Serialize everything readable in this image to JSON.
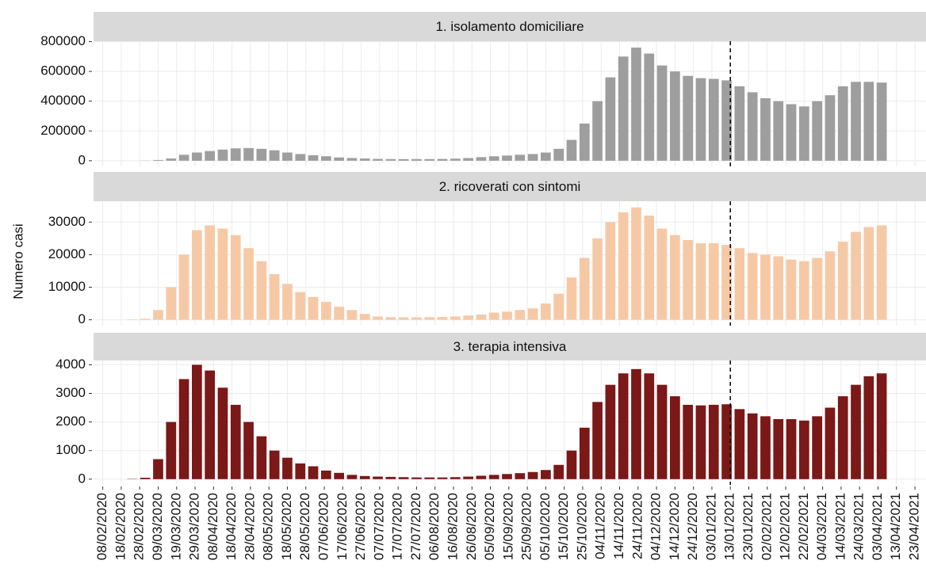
{
  "chart_data": [
    {
      "type": "bar",
      "title": "1. isolamento domiciliare",
      "color": "#9e9e9e",
      "vline": "13/01/2021",
      "xlim": [
        "03/02/2020",
        "29/04/2021"
      ],
      "ylim": [
        -38000,
        803000
      ],
      "yticks": [
        0,
        200000,
        400000,
        600000,
        800000
      ],
      "grid": true,
      "x": [
        "24/02/2020",
        "02/03/2020",
        "09/03/2020",
        "16/03/2020",
        "23/03/2020",
        "30/03/2020",
        "06/04/2020",
        "13/04/2020",
        "20/04/2020",
        "27/04/2020",
        "04/05/2020",
        "11/05/2020",
        "18/05/2020",
        "25/05/2020",
        "01/06/2020",
        "08/06/2020",
        "15/06/2020",
        "22/06/2020",
        "29/06/2020",
        "06/07/2020",
        "13/07/2020",
        "20/07/2020",
        "27/07/2020",
        "03/08/2020",
        "10/08/2020",
        "17/08/2020",
        "24/08/2020",
        "31/08/2020",
        "07/09/2020",
        "14/09/2020",
        "21/09/2020",
        "28/09/2020",
        "05/10/2020",
        "12/10/2020",
        "19/10/2020",
        "26/10/2020",
        "02/11/2020",
        "09/11/2020",
        "16/11/2020",
        "23/11/2020",
        "30/11/2020",
        "07/12/2020",
        "14/12/2020",
        "21/12/2020",
        "28/12/2020",
        "04/01/2021",
        "11/01/2021",
        "18/01/2021",
        "25/01/2021",
        "01/02/2021",
        "08/02/2021",
        "15/02/2021",
        "22/02/2021",
        "01/03/2021",
        "08/03/2021",
        "15/03/2021",
        "22/03/2021",
        "29/03/2021",
        "05/04/2021"
      ],
      "values": [
        100,
        1000,
        5000,
        15000,
        40000,
        55000,
        65000,
        75000,
        83000,
        85000,
        80000,
        70000,
        55000,
        45000,
        37000,
        30000,
        22000,
        18000,
        15000,
        12000,
        11000,
        11000,
        11000,
        11000,
        12000,
        14000,
        18000,
        24000,
        30000,
        35000,
        40000,
        45000,
        55000,
        80000,
        140000,
        250000,
        400000,
        560000,
        700000,
        760000,
        720000,
        640000,
        600000,
        570000,
        555000,
        550000,
        540000,
        500000,
        460000,
        420000,
        400000,
        380000,
        365000,
        400000,
        440000,
        500000,
        530000,
        530000,
        525000
      ]
    },
    {
      "type": "bar",
      "title": "2. ricoverati con sintomi",
      "ylabel": "Numero casi",
      "color": "#f6c9a6",
      "vline": "13/01/2021",
      "xlim": [
        "03/02/2020",
        "29/04/2021"
      ],
      "ylim": [
        -1800,
        36400
      ],
      "yticks": [
        0,
        10000,
        20000,
        30000
      ],
      "grid": true,
      "x": [
        "24/02/2020",
        "02/03/2020",
        "09/03/2020",
        "16/03/2020",
        "23/03/2020",
        "30/03/2020",
        "06/04/2020",
        "13/04/2020",
        "20/04/2020",
        "27/04/2020",
        "04/05/2020",
        "11/05/2020",
        "18/05/2020",
        "25/05/2020",
        "01/06/2020",
        "08/06/2020",
        "15/06/2020",
        "22/06/2020",
        "29/06/2020",
        "06/07/2020",
        "13/07/2020",
        "20/07/2020",
        "27/07/2020",
        "03/08/2020",
        "10/08/2020",
        "17/08/2020",
        "24/08/2020",
        "31/08/2020",
        "07/09/2020",
        "14/09/2020",
        "21/09/2020",
        "28/09/2020",
        "05/10/2020",
        "12/10/2020",
        "19/10/2020",
        "26/10/2020",
        "02/11/2020",
        "09/11/2020",
        "16/11/2020",
        "23/11/2020",
        "30/11/2020",
        "07/12/2020",
        "14/12/2020",
        "21/12/2020",
        "28/12/2020",
        "04/01/2021",
        "11/01/2021",
        "18/01/2021",
        "25/01/2021",
        "01/02/2021",
        "08/02/2021",
        "15/02/2021",
        "22/02/2021",
        "01/03/2021",
        "08/03/2021",
        "15/03/2021",
        "22/03/2021",
        "29/03/2021",
        "05/04/2021"
      ],
      "values": [
        100,
        300,
        3000,
        10000,
        20000,
        27500,
        29000,
        28000,
        26000,
        22000,
        18000,
        14000,
        11000,
        8500,
        7000,
        5500,
        4000,
        3000,
        1800,
        1000,
        800,
        750,
        750,
        800,
        850,
        1000,
        1300,
        1600,
        2200,
        2500,
        3000,
        3500,
        5000,
        8000,
        13000,
        19000,
        25000,
        30000,
        33000,
        34500,
        32000,
        28000,
        26000,
        24500,
        23500,
        23500,
        23000,
        22000,
        20500,
        20000,
        19500,
        18500,
        18000,
        19000,
        21000,
        24000,
        27000,
        28500,
        29000
      ]
    },
    {
      "type": "bar",
      "title": "3. terapia intensiva",
      "color": "#7b1818",
      "vline": "13/01/2021",
      "xlim": [
        "03/02/2020",
        "29/04/2021"
      ],
      "ylim": [
        -200,
        4150
      ],
      "yticks": [
        0,
        1000,
        2000,
        3000,
        4000
      ],
      "grid": true,
      "xticks": [
        "08/02/2020",
        "18/02/2020",
        "28/02/2020",
        "09/03/2020",
        "19/03/2020",
        "29/03/2020",
        "08/04/2020",
        "18/04/2020",
        "28/04/2020",
        "08/05/2020",
        "18/05/2020",
        "28/05/2020",
        "07/06/2020",
        "17/06/2020",
        "27/06/2020",
        "07/07/2020",
        "17/07/2020",
        "27/07/2020",
        "06/08/2020",
        "16/08/2020",
        "26/08/2020",
        "05/09/2020",
        "15/09/2020",
        "25/09/2020",
        "05/10/2020",
        "15/10/2020",
        "25/10/2020",
        "04/11/2020",
        "14/11/2020",
        "24/11/2020",
        "04/12/2020",
        "14/12/2020",
        "24/12/2020",
        "03/01/2021",
        "13/01/2021",
        "23/01/2021",
        "02/02/2021",
        "12/02/2021",
        "22/02/2021",
        "04/03/2021",
        "14/03/2021",
        "24/03/2021",
        "03/04/2021",
        "13/04/2021",
        "23/04/2021"
      ],
      "x": [
        "24/02/2020",
        "02/03/2020",
        "09/03/2020",
        "16/03/2020",
        "23/03/2020",
        "30/03/2020",
        "06/04/2020",
        "13/04/2020",
        "20/04/2020",
        "27/04/2020",
        "04/05/2020",
        "11/05/2020",
        "18/05/2020",
        "25/05/2020",
        "01/06/2020",
        "08/06/2020",
        "15/06/2020",
        "22/06/2020",
        "29/06/2020",
        "06/07/2020",
        "13/07/2020",
        "20/07/2020",
        "27/07/2020",
        "03/08/2020",
        "10/08/2020",
        "17/08/2020",
        "24/08/2020",
        "31/08/2020",
        "07/09/2020",
        "14/09/2020",
        "21/09/2020",
        "28/09/2020",
        "05/10/2020",
        "12/10/2020",
        "19/10/2020",
        "26/10/2020",
        "02/11/2020",
        "09/11/2020",
        "16/11/2020",
        "23/11/2020",
        "30/11/2020",
        "07/12/2020",
        "14/12/2020",
        "21/12/2020",
        "28/12/2020",
        "04/01/2021",
        "11/01/2021",
        "18/01/2021",
        "25/01/2021",
        "01/02/2021",
        "08/02/2021",
        "15/02/2021",
        "22/02/2021",
        "01/03/2021",
        "08/03/2021",
        "15/03/2021",
        "22/03/2021",
        "29/03/2021",
        "05/04/2021"
      ],
      "values": [
        10,
        50,
        700,
        2000,
        3500,
        4000,
        3800,
        3200,
        2600,
        2000,
        1500,
        1000,
        750,
        550,
        450,
        300,
        220,
        150,
        110,
        90,
        80,
        70,
        60,
        60,
        60,
        70,
        90,
        120,
        150,
        180,
        210,
        250,
        320,
        500,
        1000,
        1800,
        2700,
        3300,
        3700,
        3850,
        3700,
        3300,
        2900,
        2600,
        2580,
        2600,
        2620,
        2450,
        2300,
        2200,
        2100,
        2100,
        2050,
        2200,
        2500,
        2900,
        3300,
        3600,
        3700
      ]
    }
  ]
}
